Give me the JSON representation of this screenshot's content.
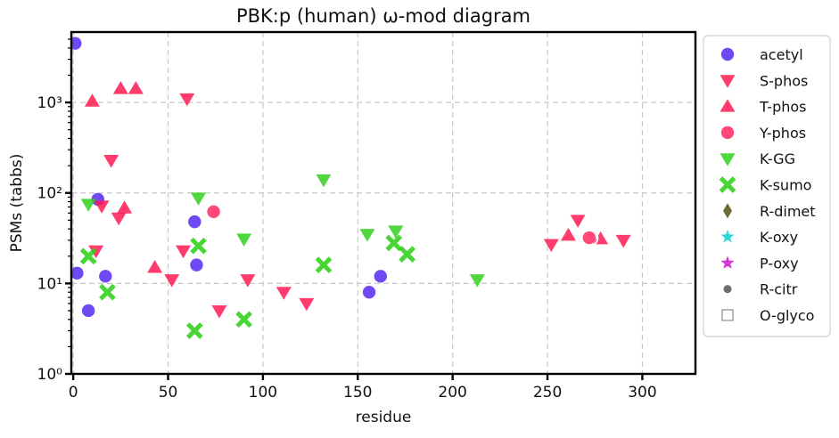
{
  "chart_data": {
    "type": "scatter",
    "title": "PBK:p (human) ω-mod diagram",
    "xlabel": "residue",
    "ylabel": "PSMs (tabbs)",
    "xlim": [
      -1,
      328
    ],
    "ylim": [
      1,
      6000
    ],
    "yscale": "log",
    "xticks": [
      0,
      50,
      100,
      150,
      200,
      250,
      300
    ],
    "xtick_labels": [
      "0",
      "50",
      "100",
      "150",
      "200",
      "250",
      "300"
    ],
    "yticks": [
      1,
      10,
      100,
      1000
    ],
    "ytick_labels": [
      "10⁰",
      "10¹",
      "10²",
      "10³"
    ],
    "grid": true,
    "legend_position": "outside-right",
    "series": [
      {
        "name": "acetyl",
        "marker": "circle",
        "color": "#4b1bf0",
        "points": [
          [
            1,
            4500
          ],
          [
            2,
            13
          ],
          [
            8,
            5
          ],
          [
            13,
            85
          ],
          [
            17,
            12
          ],
          [
            64,
            48
          ],
          [
            65,
            16
          ],
          [
            156,
            8
          ],
          [
            162,
            12
          ]
        ]
      },
      {
        "name": "S-phos",
        "marker": "triangle-down",
        "color": "#ff1a52",
        "points": [
          [
            12,
            23
          ],
          [
            15,
            72
          ],
          [
            20,
            230
          ],
          [
            24,
            53
          ],
          [
            52,
            11
          ],
          [
            58,
            23
          ],
          [
            60,
            1100
          ],
          [
            77,
            5
          ],
          [
            92,
            11
          ],
          [
            111,
            8
          ],
          [
            123,
            6
          ],
          [
            252,
            27
          ],
          [
            266,
            50
          ],
          [
            290,
            30
          ]
        ]
      },
      {
        "name": "T-phos",
        "marker": "triangle-up",
        "color": "#ff1a52",
        "points": [
          [
            10,
            1030
          ],
          [
            25,
            1420
          ],
          [
            27,
            68
          ],
          [
            33,
            1420
          ],
          [
            43,
            15
          ],
          [
            261,
            34
          ],
          [
            278,
            31
          ]
        ]
      },
      {
        "name": "Y-phos",
        "marker": "circle",
        "color": "#ff1a52",
        "points": [
          [
            74,
            62
          ],
          [
            272,
            32
          ]
        ]
      },
      {
        "name": "K-GG",
        "marker": "triangle-down",
        "color": "#33d11d",
        "points": [
          [
            8,
            75
          ],
          [
            66,
            88
          ],
          [
            90,
            31
          ],
          [
            132,
            140
          ],
          [
            155,
            35
          ],
          [
            170,
            38
          ],
          [
            213,
            11
          ]
        ]
      },
      {
        "name": "K-sumo",
        "marker": "x",
        "color": "#33d11d",
        "points": [
          [
            8,
            20
          ],
          [
            18,
            8
          ],
          [
            64,
            3
          ],
          [
            66,
            26
          ],
          [
            90,
            4
          ],
          [
            132,
            16
          ],
          [
            169,
            28
          ],
          [
            176,
            21
          ]
        ]
      },
      {
        "name": "R-dimet",
        "marker": "diamond",
        "color": "#6b6b33",
        "points": []
      },
      {
        "name": "K-oxy",
        "marker": "star",
        "color": "#33d6d6",
        "points": []
      },
      {
        "name": "P-oxy",
        "marker": "star",
        "color": "#d433d6",
        "points": []
      },
      {
        "name": "R-citr",
        "marker": "dot",
        "color": "#6e6e6e",
        "points": []
      },
      {
        "name": "O-glyco",
        "marker": "square-open",
        "color": "#8c8c8c",
        "points": []
      }
    ]
  }
}
